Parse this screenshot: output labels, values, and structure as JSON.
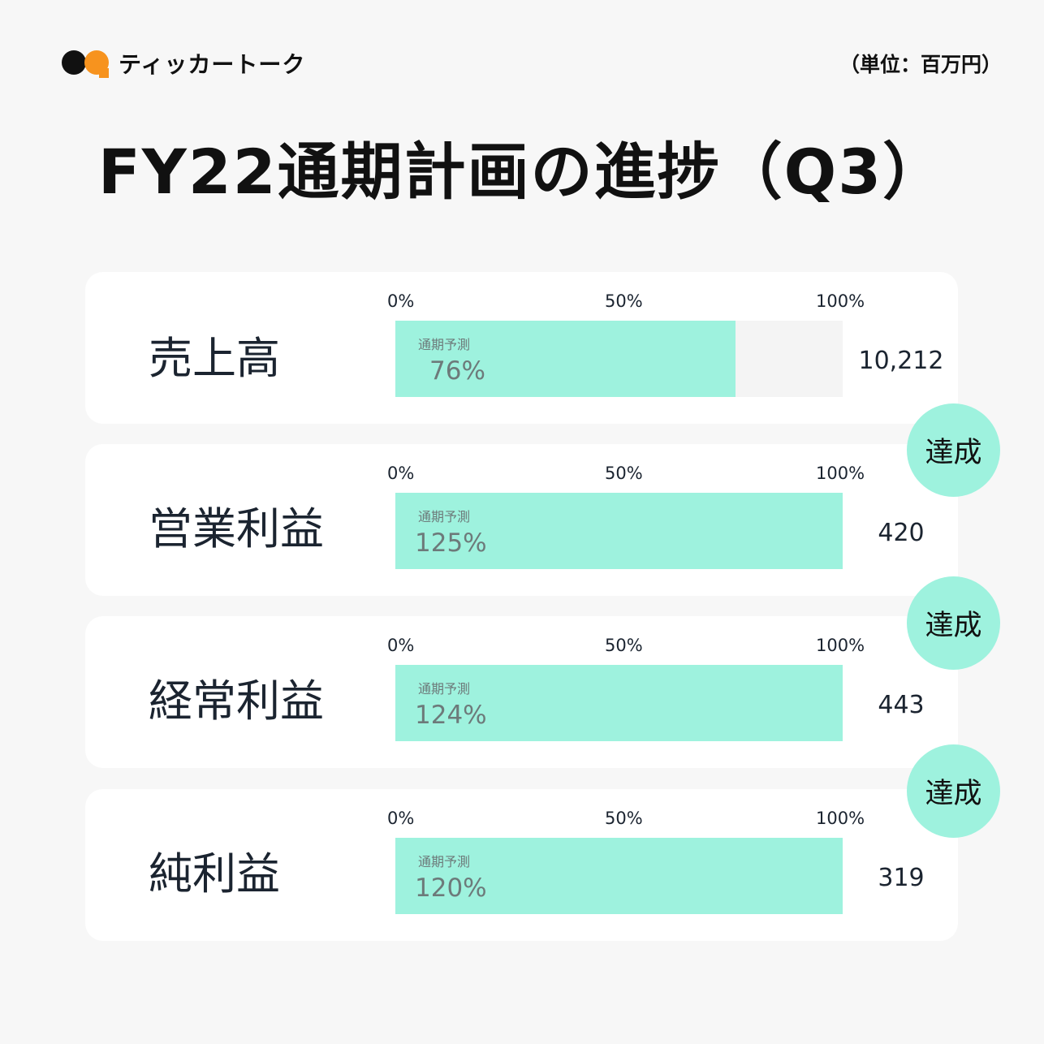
{
  "brand": {
    "name": "ティッカートーク"
  },
  "unit_label": "（単位：百万円）",
  "title": "FY22通期計画の進捗（Q3）",
  "colors": {
    "fill": "#9ef2de",
    "track": "#f4f4f4",
    "accent_orange": "#f7931e"
  },
  "chart_data": {
    "type": "bar",
    "orientation": "horizontal",
    "title": "FY22通期計画の進捗（Q3）",
    "axis_ticks": [
      "0%",
      "50%",
      "100%"
    ],
    "xlim": [
      0,
      100
    ],
    "bar_caption": "通期予測",
    "rows": [
      {
        "label": "売上高",
        "progress_pct": 76,
        "progress_label": "76%",
        "value": "10,212",
        "badge": ""
      },
      {
        "label": "営業利益",
        "progress_pct": 125,
        "progress_label": "125%",
        "value": "420",
        "badge": "達成"
      },
      {
        "label": "経常利益",
        "progress_pct": 124,
        "progress_label": "124%",
        "value": "443",
        "badge": "達成"
      },
      {
        "label": "純利益",
        "progress_pct": 120,
        "progress_label": "120%",
        "value": "319",
        "badge": "達成"
      }
    ]
  }
}
